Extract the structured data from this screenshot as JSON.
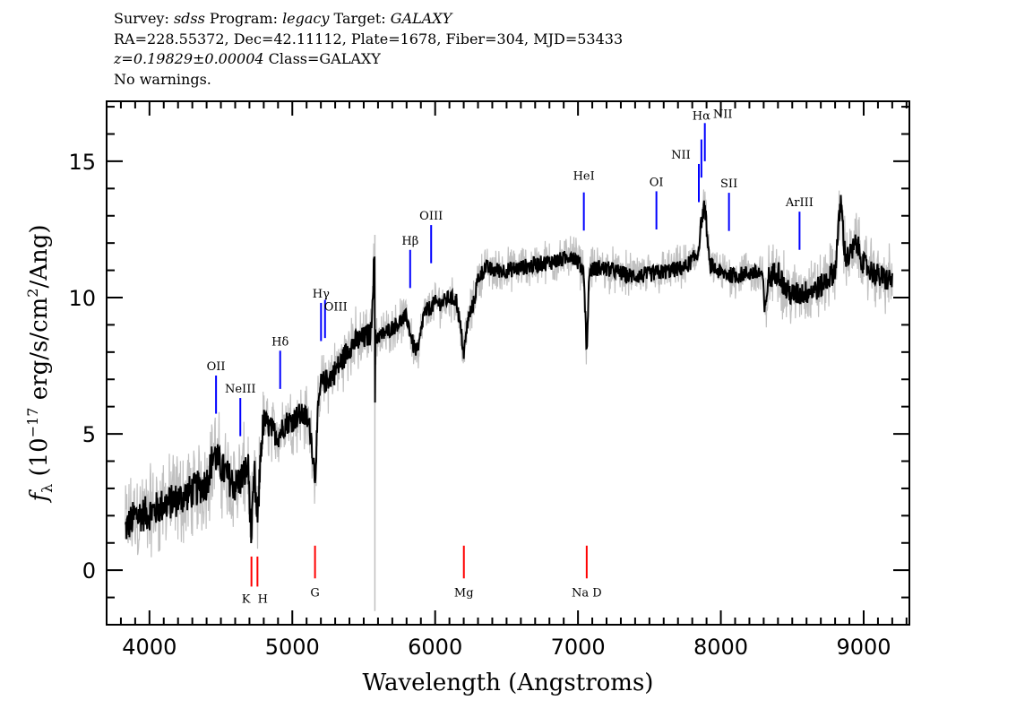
{
  "header": {
    "line1": {
      "survey_label": "Survey:",
      "survey": "sdss",
      "program_label": "Program:",
      "program": "legacy",
      "target_label": "Target:",
      "target": "GALAXY"
    },
    "line2": "RA=228.55372, Dec=42.11112, Plate=1678, Fiber=304, MJD=53433",
    "line3": {
      "redshift": "z=0.19829±0.00004",
      "class": "Class=GALAXY"
    },
    "line4": "No warnings."
  },
  "chart_data": {
    "type": "line",
    "xlabel": "Wavelength (Angstroms)",
    "ylabel": "f_λ (10^-17 erg/s/cm^2/Ang)",
    "xlim": [
      3700,
      9320
    ],
    "ylim": [
      -2,
      17.2
    ],
    "xticks": [
      4000,
      5000,
      6000,
      7000,
      8000,
      9000
    ],
    "yticks": [
      0,
      5,
      10,
      15
    ],
    "grid": false,
    "colors": {
      "flux": "#000000",
      "error": "#c0c0c0",
      "emission": "#0000ff",
      "absorption": "#ff0000"
    },
    "flux_smoothed": {
      "x": [
        3830,
        3900,
        4000,
        4100,
        4200,
        4300,
        4400,
        4450,
        4500,
        4550,
        4600,
        4650,
        4690,
        4714,
        4735,
        4756,
        4780,
        4800,
        4850,
        4900,
        4950,
        5000,
        5050,
        5100,
        5130,
        5159,
        5180,
        5200,
        5250,
        5300,
        5350,
        5400,
        5450,
        5500,
        5550,
        5576,
        5578,
        5580,
        5620,
        5700,
        5750,
        5800,
        5850,
        5880,
        5920,
        6000,
        6050,
        6100,
        6150,
        6190,
        6201,
        6230,
        6270,
        6300,
        6350,
        6400,
        6500,
        6600,
        6700,
        6800,
        6900,
        6950,
        7000,
        7040,
        7061,
        7080,
        7150,
        7250,
        7350,
        7450,
        7550,
        7650,
        7750,
        7840,
        7864,
        7888,
        7920,
        8000,
        8100,
        8200,
        8290,
        8310,
        8330,
        8400,
        8450,
        8500,
        8600,
        8700,
        8800,
        8840,
        8870,
        8900,
        8950,
        9000,
        9100,
        9200
      ],
      "y": [
        1.5,
        2.0,
        2.1,
        2.4,
        2.6,
        2.9,
        3.2,
        4.3,
        3.8,
        3.4,
        3.1,
        3.4,
        3.8,
        1.2,
        3.5,
        1.6,
        4.5,
        5.5,
        5.2,
        4.9,
        5.4,
        5.5,
        5.7,
        5.6,
        5.0,
        3.4,
        5.8,
        6.8,
        7.0,
        7.3,
        7.7,
        8.2,
        8.4,
        8.5,
        8.7,
        11.7,
        2.9,
        8.6,
        8.6,
        8.9,
        9.1,
        9.3,
        8.2,
        8.0,
        9.4,
        9.8,
        9.8,
        10.0,
        9.9,
        8.4,
        7.9,
        9.2,
        9.8,
        10.7,
        11.1,
        11.0,
        11.0,
        11.1,
        11.2,
        11.3,
        11.4,
        11.6,
        11.3,
        11.0,
        8.0,
        11.0,
        11.1,
        11.0,
        10.8,
        10.8,
        10.9,
        11.0,
        11.1,
        11.6,
        12.8,
        13.4,
        11.2,
        10.9,
        10.8,
        10.9,
        10.9,
        9.3,
        10.7,
        11.0,
        10.3,
        10.1,
        10.2,
        10.4,
        11.0,
        13.6,
        11.5,
        11.5,
        12.0,
        11.2,
        10.8,
        10.6
      ]
    },
    "line_markers": [
      {
        "label": "OII",
        "wavelength": 4466,
        "kind": "emission"
      },
      {
        "label": "NeIII",
        "wavelength": 4636,
        "kind": "emission"
      },
      {
        "label": "K",
        "wavelength": 4714,
        "kind": "absorption"
      },
      {
        "label": "H",
        "wavelength": 4756,
        "kind": "absorption"
      },
      {
        "label": "Hδ",
        "wavelength": 4915,
        "kind": "emission"
      },
      {
        "label": "G",
        "wavelength": 5159,
        "kind": "absorption"
      },
      {
        "label": "Hγ",
        "wavelength": 5201,
        "kind": "emission"
      },
      {
        "label": "OIII",
        "wavelength": 5229,
        "kind": "emission"
      },
      {
        "label": "Hβ",
        "wavelength": 5825,
        "kind": "emission"
      },
      {
        "label": "OIII",
        "wavelength": 5972,
        "kind": "emission"
      },
      {
        "label": "Mg",
        "wavelength": 6201,
        "kind": "absorption"
      },
      {
        "label": "HeI",
        "wavelength": 7041,
        "kind": "emission"
      },
      {
        "label": "Na D",
        "wavelength": 7061,
        "kind": "absorption"
      },
      {
        "label": "OI",
        "wavelength": 7549,
        "kind": "emission"
      },
      {
        "label": "NII",
        "wavelength": 7846,
        "kind": "emission"
      },
      {
        "label": "Hα",
        "wavelength": 7864,
        "kind": "emission"
      },
      {
        "label": "NII",
        "wavelength": 7888,
        "kind": "emission"
      },
      {
        "label": "SII",
        "wavelength": 8057,
        "kind": "emission"
      },
      {
        "label": "ArIII",
        "wavelength": 8551,
        "kind": "emission"
      }
    ]
  }
}
